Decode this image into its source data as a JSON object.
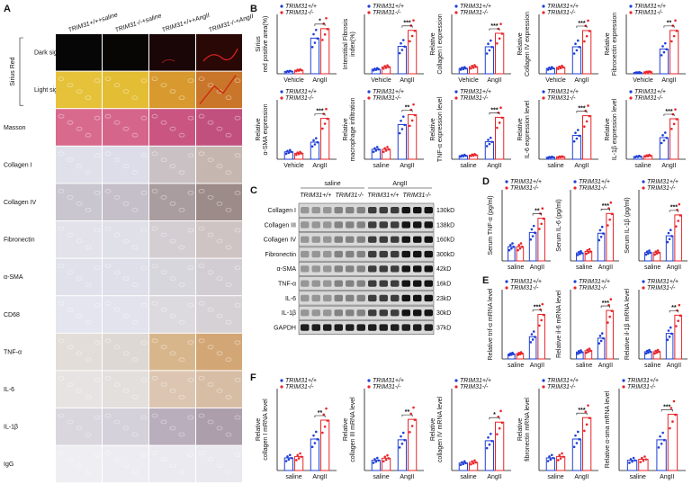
{
  "panel_labels": [
    "A",
    "B",
    "C",
    "D",
    "E",
    "F"
  ],
  "panel_a": {
    "column_headers": [
      "TRIM31+/++saline",
      "TRIM31-/-+saline",
      "TRIM31+/++AngII",
      "TRIM31-/-+AngII"
    ],
    "stain_label": "Sirius Red",
    "rows": [
      "Dark sight",
      "Light sight",
      "Masson",
      "Collagen I",
      "Collagen IV",
      "Fibronectin",
      "α-SMA",
      "CD68",
      "TNF-α",
      "IL-6",
      "IL-1β",
      "IgG"
    ]
  },
  "panel_c": {
    "groups": [
      "saline",
      "AngII"
    ],
    "lanes": [
      "TRIM31+/+",
      "TRIM31-/-",
      "TRIM31+/+",
      "TRIM31-/-"
    ],
    "proteins": [
      "Collagen I",
      "Collagen III",
      "Collagen IV",
      "Fibronectin",
      "α-SMA",
      "TNF-α",
      "IL-6",
      "IL-1β",
      "GAPDH"
    ],
    "sizes": [
      "130kD",
      "138kD",
      "160kD",
      "300kD",
      "42kD",
      "16kD",
      "23kD",
      "30kD",
      "37kD"
    ]
  },
  "chart_data": [
    {
      "type": "bar",
      "ylabel": [
        "Sirius",
        "red positive area(%)"
      ],
      "categories": [
        "Vehicle",
        "AngII"
      ],
      "series": [
        {
          "name": "TRIM31+/+",
          "color": "#1f3fd6",
          "values": [
            1,
            15
          ]
        },
        {
          "name": "TRIM31-/-",
          "color": "#e8262a",
          "values": [
            1.5,
            19
          ]
        }
      ],
      "ylim": [
        0,
        25
      ],
      "significance": "*"
    },
    {
      "type": "bar",
      "ylabel": [
        "Interstitial Fibrosis",
        "index(%)"
      ],
      "categories": [
        "Vehicle",
        "AngII"
      ],
      "series": [
        {
          "name": "TRIM31+/+",
          "color": "#1f3fd6",
          "values": [
            1,
            6
          ]
        },
        {
          "name": "TRIM31-/-",
          "color": "#e8262a",
          "values": [
            1.5,
            9.5
          ]
        }
      ],
      "ylim": [
        0,
        13
      ],
      "significance": "***"
    },
    {
      "type": "bar",
      "ylabel": [
        "Relative",
        "Collagen I expression"
      ],
      "categories": [
        "Vehicle",
        "AngII"
      ],
      "series": [
        {
          "name": "TRIM31+/+",
          "color": "#1f3fd6",
          "values": [
            1,
            5
          ]
        },
        {
          "name": "TRIM31-/-",
          "color": "#e8262a",
          "values": [
            1.3,
            7.5
          ]
        }
      ],
      "ylim": [
        0,
        11
      ],
      "significance": "***"
    },
    {
      "type": "bar",
      "ylabel": [
        "Relative",
        "Collagen IV expression"
      ],
      "categories": [
        "Vehicle",
        "AngII"
      ],
      "series": [
        {
          "name": "TRIM31+/+",
          "color": "#1f3fd6",
          "values": [
            1,
            5
          ]
        },
        {
          "name": "TRIM31-/-",
          "color": "#e8262a",
          "values": [
            1.2,
            8
          ]
        }
      ],
      "ylim": [
        0,
        11
      ],
      "significance": "***"
    },
    {
      "type": "bar",
      "ylabel": [
        "Relative",
        "Fibronectin expression"
      ],
      "categories": [
        "Vehicle",
        "AngII"
      ],
      "series": [
        {
          "name": "TRIM31+/+",
          "color": "#1f3fd6",
          "values": [
            1,
            20
          ]
        },
        {
          "name": "TRIM31-/-",
          "color": "#e8262a",
          "values": [
            1.5,
            35
          ]
        }
      ],
      "ylim": [
        0,
        48
      ],
      "significance": "**"
    },
    {
      "type": "bar",
      "ylabel": [
        "Relative",
        "α-SMA expression"
      ],
      "categories": [
        "Vehicle",
        "AngII"
      ],
      "series": [
        {
          "name": "TRIM31+/+",
          "color": "#1f3fd6",
          "values": [
            1,
            2.3
          ]
        },
        {
          "name": "TRIM31-/-",
          "color": "#e8262a",
          "values": [
            0.8,
            5.5
          ]
        }
      ],
      "ylim": [
        0,
        8
      ],
      "significance": "***"
    },
    {
      "type": "bar",
      "ylabel": [
        "Relative",
        "macrophage infiltration"
      ],
      "categories": [
        "saline",
        "AngII"
      ],
      "series": [
        {
          "name": "TRIM31+/+",
          "color": "#1f3fd6",
          "values": [
            1,
            3.5
          ]
        },
        {
          "name": "TRIM31-/-",
          "color": "#e8262a",
          "values": [
            1,
            4.5
          ]
        }
      ],
      "ylim": [
        0,
        6
      ],
      "significance": "**"
    },
    {
      "type": "bar",
      "ylabel": [
        "Relative",
        "TNF-α expression level"
      ],
      "categories": [
        "saline",
        "AngII"
      ],
      "series": [
        {
          "name": "TRIM31+/+",
          "color": "#1f3fd6",
          "values": [
            1,
            5
          ]
        },
        {
          "name": "TRIM31-/-",
          "color": "#e8262a",
          "values": [
            1.2,
            12
          ]
        }
      ],
      "ylim": [
        0,
        17
      ],
      "significance": "***"
    },
    {
      "type": "bar",
      "ylabel": [
        "Relative",
        "IL-6 expression level"
      ],
      "categories": [
        "saline",
        "AngII"
      ],
      "series": [
        {
          "name": "TRIM31+/+",
          "color": "#1f3fd6",
          "values": [
            1,
            12
          ]
        },
        {
          "name": "TRIM31-/-",
          "color": "#e8262a",
          "values": [
            1.2,
            22
          ]
        }
      ],
      "ylim": [
        0,
        30
      ],
      "significance": "***"
    },
    {
      "type": "bar",
      "ylabel": [
        "Relative",
        "IL-1β expression level"
      ],
      "categories": [
        "saline",
        "AngII"
      ],
      "series": [
        {
          "name": "TRIM31+/+",
          "color": "#1f3fd6",
          "values": [
            1,
            8
          ]
        },
        {
          "name": "TRIM31-/-",
          "color": "#e8262a",
          "values": [
            1.3,
            15
          ]
        }
      ],
      "ylim": [
        0,
        22
      ],
      "significance": "***"
    },
    {
      "type": "bar",
      "ylabel": [
        "Serum TNF-α (pg/ml)"
      ],
      "categories": [
        "saline",
        "AngII"
      ],
      "series": [
        {
          "name": "TRIM31+/+",
          "color": "#1f3fd6",
          "values": [
            1,
            2
          ]
        },
        {
          "name": "TRIM31-/-",
          "color": "#e8262a",
          "values": [
            1,
            3
          ]
        }
      ],
      "ylim": [
        0,
        5
      ],
      "significance": "**"
    },
    {
      "type": "bar",
      "ylabel": [
        "Serum IL-6 (pg/ml)"
      ],
      "categories": [
        "saline",
        "AngII"
      ],
      "series": [
        {
          "name": "TRIM31+/+",
          "color": "#1f3fd6",
          "values": [
            1,
            3.5
          ]
        },
        {
          "name": "TRIM31-/-",
          "color": "#e8262a",
          "values": [
            1.2,
            6
          ]
        }
      ],
      "ylim": [
        0,
        9
      ],
      "significance": "***"
    },
    {
      "type": "bar",
      "ylabel": [
        "Serum IL-1β (pg/ml)"
      ],
      "categories": [
        "saline",
        "AngII"
      ],
      "series": [
        {
          "name": "TRIM31+/+",
          "color": "#1f3fd6",
          "values": [
            1,
            3
          ]
        },
        {
          "name": "TRIM31-/-",
          "color": "#e8262a",
          "values": [
            1,
            5.5
          ]
        }
      ],
      "ylim": [
        0,
        8.5
      ],
      "significance": "***"
    },
    {
      "type": "bar",
      "ylabel": [
        "Relative tnf-α mRNA level"
      ],
      "categories": [
        "saline",
        "AngII"
      ],
      "series": [
        {
          "name": "TRIM31+/+",
          "color": "#1f3fd6",
          "values": [
            1,
            4.5
          ]
        },
        {
          "name": "TRIM31-/-",
          "color": "#e8262a",
          "values": [
            1.1,
            9
          ]
        }
      ],
      "ylim": [
        0,
        14
      ],
      "significance": "***"
    },
    {
      "type": "bar",
      "ylabel": [
        "Relative il-6 mRNA level"
      ],
      "categories": [
        "saline",
        "AngII"
      ],
      "series": [
        {
          "name": "TRIM31+/+",
          "color": "#1f3fd6",
          "values": [
            1,
            3
          ]
        },
        {
          "name": "TRIM31-/-",
          "color": "#e8262a",
          "values": [
            1.2,
            7
          ]
        }
      ],
      "ylim": [
        0,
        10
      ],
      "significance": "***"
    },
    {
      "type": "bar",
      "ylabel": [
        "Relative il-1β mRNA level"
      ],
      "categories": [
        "saline",
        "AngII"
      ],
      "series": [
        {
          "name": "TRIM31+/+",
          "color": "#1f3fd6",
          "values": [
            1,
            3.5
          ]
        },
        {
          "name": "TRIM31-/-",
          "color": "#e8262a",
          "values": [
            1,
            6
          ]
        }
      ],
      "ylim": [
        0,
        9.5
      ],
      "significance": "**"
    },
    {
      "type": "bar",
      "ylabel": [
        "Relative",
        "collagen I mRNA level"
      ],
      "categories": [
        "saline",
        "AngII"
      ],
      "series": [
        {
          "name": "TRIM31+/+",
          "color": "#1f3fd6",
          "values": [
            1,
            2.5
          ]
        },
        {
          "name": "TRIM31-/-",
          "color": "#e8262a",
          "values": [
            1.1,
            4
          ]
        }
      ],
      "ylim": [
        0,
        6.5
      ],
      "significance": "**"
    },
    {
      "type": "bar",
      "ylabel": [
        "Relative",
        "collagen III mRNA level"
      ],
      "categories": [
        "saline",
        "AngII"
      ],
      "series": [
        {
          "name": "TRIM31+/+",
          "color": "#1f3fd6",
          "values": [
            1,
            3
          ]
        },
        {
          "name": "TRIM31-/-",
          "color": "#e8262a",
          "values": [
            1.2,
            5
          ]
        }
      ],
      "ylim": [
        0,
        8
      ],
      "significance": "**"
    },
    {
      "type": "bar",
      "ylabel": [
        "Relative",
        "collagen IV mRNA level"
      ],
      "categories": [
        "saline",
        "AngII"
      ],
      "series": [
        {
          "name": "TRIM31+/+",
          "color": "#1f3fd6",
          "values": [
            1,
            4
          ]
        },
        {
          "name": "TRIM31-/-",
          "color": "#e8262a",
          "values": [
            1.1,
            6.5
          ]
        }
      ],
      "ylim": [
        0,
        11
      ],
      "significance": "*"
    },
    {
      "type": "bar",
      "ylabel": [
        "Relative",
        "fibronectin mRNA level"
      ],
      "categories": [
        "saline",
        "AngII"
      ],
      "series": [
        {
          "name": "TRIM31+/+",
          "color": "#1f3fd6",
          "values": [
            1,
            2.5
          ]
        },
        {
          "name": "TRIM31-/-",
          "color": "#e8262a",
          "values": [
            1.1,
            4.2
          ]
        }
      ],
      "ylim": [
        0,
        6.5
      ],
      "significance": "***"
    },
    {
      "type": "bar",
      "ylabel": [
        "Relative α-sma mRNA level"
      ],
      "categories": [
        "saline",
        "AngII"
      ],
      "series": [
        {
          "name": "TRIM31+/+",
          "color": "#1f3fd6",
          "values": [
            1,
            3
          ]
        },
        {
          "name": "TRIM31-/-",
          "color": "#e8262a",
          "values": [
            1.1,
            5.5
          ]
        }
      ],
      "ylim": [
        0,
        8
      ],
      "significance": "***"
    }
  ]
}
